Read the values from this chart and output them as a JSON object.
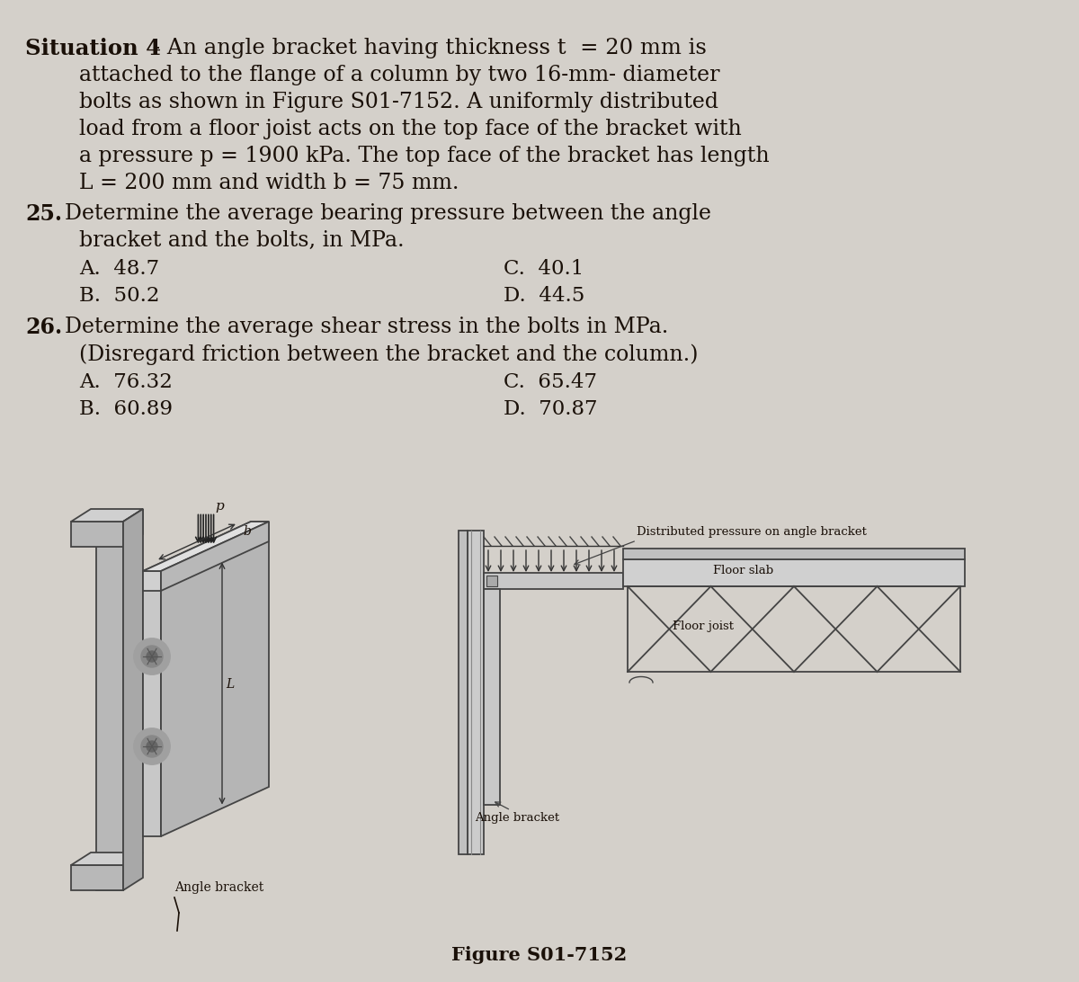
{
  "bg_color": "#c8c4be",
  "text_color": "#1a1008",
  "page_color": "#d4d0ca",
  "font_size_title": 17.5,
  "font_size_body": 17.0,
  "font_size_answers": 16.5,
  "font_size_fig_label": 9.5,
  "font_size_caption": 15,
  "font_family": "DejaVu Serif",
  "situation_bold": "Situation 4",
  "situation_rest": " - An angle bracket having thickness t  = 20 mm is",
  "line2": "attached to the flange of a column by two 16-mm- diameter",
  "line3": "bolts as shown in Figure S01-7152. A uniformly distributed",
  "line4": "load from a floor joist acts on the top face of the bracket with",
  "line5": "a pressure p = 1900 kPa. The top face of the bracket has length",
  "line6": "L = 200 mm and width b = 75 mm.",
  "q25_num": "25.",
  "q25_line1": "Determine the average bearing pressure between the angle",
  "q25_line2": "bracket and the bolts, in MPa.",
  "q25_A": "A.  48.7",
  "q25_B": "B.  50.2",
  "q25_C": "C.  40.1",
  "q25_D": "D.  44.5",
  "q26_num": "26.",
  "q26_line1": "Determine the average shear stress in the bolts in MPa.",
  "q26_line2": "(Disregard friction between the bracket and the column.)",
  "q26_A": "A.  76.32",
  "q26_B": "B.  60.89",
  "q26_C": "C.  65.47",
  "q26_D": "D.  70.87",
  "fig_caption": "Figure S01-7152",
  "label_dist_pressure": "Distributed pressure on angle bracket",
  "label_floor_slab": "Floor slab",
  "label_floor_joist": "Floor joist",
  "label_angle_bracket": "Angle bracket",
  "label_p": "p",
  "label_b": "b",
  "label_L": "L"
}
